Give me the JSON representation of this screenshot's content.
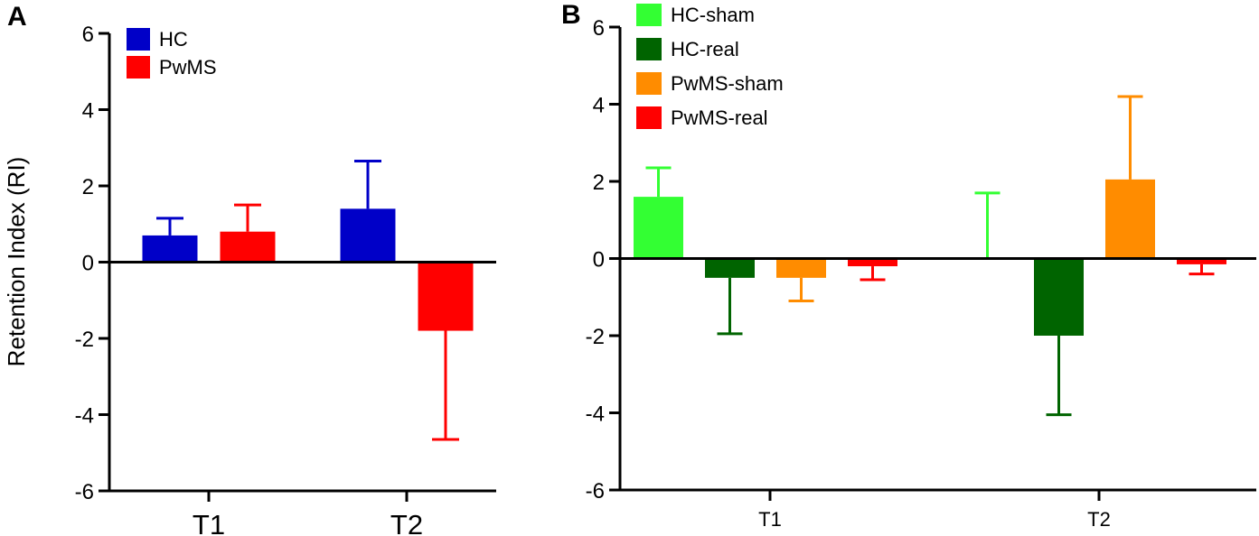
{
  "chart_data": [
    {
      "panel": "A",
      "type": "bar",
      "title": "",
      "xlabel": "",
      "ylabel": "Retention Index (RI)",
      "ylim": [
        -6,
        6
      ],
      "yticks": [
        6,
        4,
        2,
        0,
        -2,
        -4,
        -6
      ],
      "ytick_labels": [
        "6",
        "4",
        "2",
        "0",
        "-2",
        "-4",
        "-6"
      ],
      "categories": [
        "T1",
        "T2"
      ],
      "legend_position": "top-left",
      "series": [
        {
          "name": "HC",
          "color": "#0000c8",
          "values": [
            0.7,
            1.4
          ],
          "errors": [
            0.45,
            1.25
          ]
        },
        {
          "name": "PwMS",
          "color": "#ff0000",
          "values": [
            0.8,
            -1.8
          ],
          "errors": [
            0.7,
            2.85
          ]
        }
      ]
    },
    {
      "panel": "B",
      "type": "bar",
      "title": "",
      "xlabel": "",
      "ylabel": "",
      "ylim": [
        -6,
        6
      ],
      "yticks": [
        6,
        4,
        2,
        0,
        -2,
        -4,
        -6
      ],
      "ytick_labels": [
        "6",
        "4",
        "2",
        "0",
        "-2",
        "-4",
        "-6"
      ],
      "categories": [
        "T1",
        "T2"
      ],
      "legend_position": "top-left",
      "series": [
        {
          "name": "HC-sham",
          "color": "#33ff33",
          "values": [
            1.6,
            0.0
          ],
          "errors": [
            0.75,
            1.7
          ]
        },
        {
          "name": "HC-real",
          "color": "#006400",
          "values": [
            -0.5,
            -2.0
          ],
          "errors": [
            1.45,
            2.05
          ]
        },
        {
          "name": "PwMS-sham",
          "color": "#ff8c00",
          "values": [
            -0.5,
            2.05
          ],
          "errors": [
            0.6,
            2.15
          ]
        },
        {
          "name": "PwMS-real",
          "color": "#ff0000",
          "values": [
            -0.2,
            -0.15
          ],
          "errors": [
            0.35,
            0.25
          ]
        }
      ]
    }
  ]
}
